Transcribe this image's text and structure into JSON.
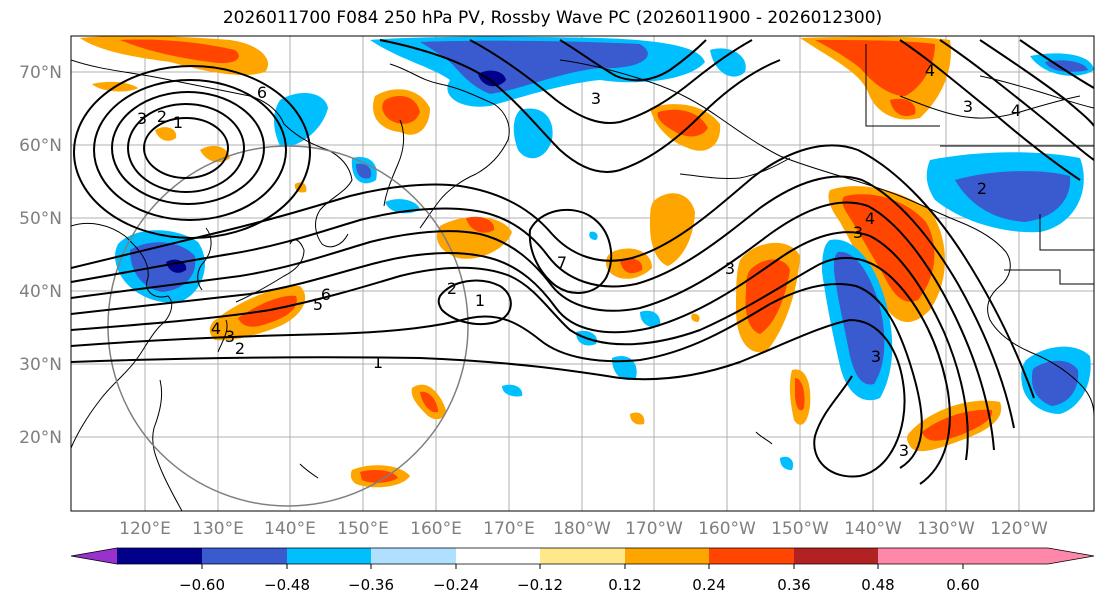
{
  "title": "2026011700 F084 250 hPa PV, Rossby Wave PC (2026011900 - 2026012300)",
  "lat_labels": [
    "70°N",
    "60°N",
    "50°N",
    "40°N",
    "30°N",
    "20°N"
  ],
  "lon_labels": [
    "120°E",
    "130°E",
    "140°E",
    "150°E",
    "160°E",
    "170°E",
    "180°W",
    "170°W",
    "160°W",
    "150°W",
    "140°W",
    "130°W",
    "120°W"
  ],
  "contour_labels": [
    "6",
    "1",
    "2",
    "3",
    "1",
    "2",
    "3",
    "4",
    "5",
    "6",
    "7",
    "1",
    "2",
    "3",
    "3",
    "3",
    "4",
    "3",
    "4",
    "3",
    "2",
    "3",
    "4"
  ],
  "colorbar": {
    "tick_labels": [
      "−0.60",
      "−0.48",
      "−0.36",
      "−0.24",
      "−0.12",
      "0.12",
      "0.24",
      "0.36",
      "0.48",
      "0.60"
    ],
    "colors": [
      "#9932cc",
      "#00008b",
      "#3a5bd0",
      "#00bfff",
      "#b0e0ff",
      "#ffffff",
      "#ffe88a",
      "#ffa500",
      "#ff4500",
      "#b22222",
      "#ff88aa"
    ]
  },
  "anomaly_colors": {
    "neg_strong": "#00008b",
    "neg_mid": "#3a5bd0",
    "neg_weak": "#00bfff",
    "pos_weak": "#ffa500",
    "pos_mid": "#ff4500",
    "pos_strong": "#b22222"
  }
}
